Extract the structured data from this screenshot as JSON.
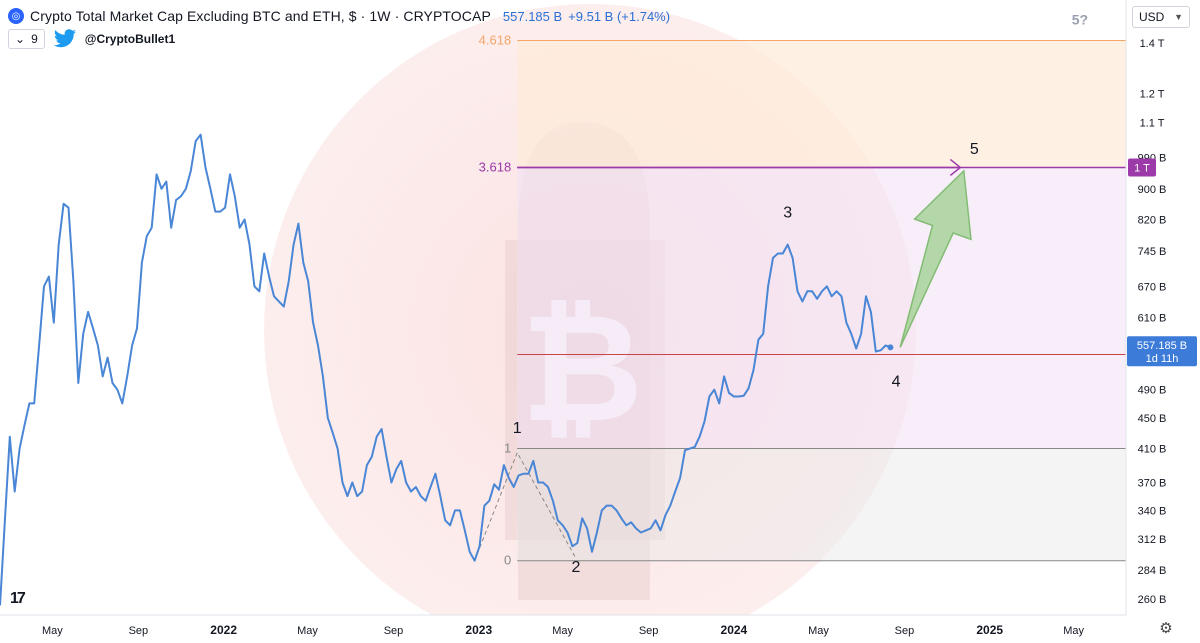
{
  "header": {
    "title": "Crypto Total Market Cap Excluding BTC and ETH, $ · 1W · CRYPTOCAP",
    "price": "557.185 B",
    "change": "+9.51 B (+1.74%)",
    "indicator_count": "9",
    "handle": "@CryptoBullet1"
  },
  "currency": {
    "selected": "USD"
  },
  "tv_logo": "17",
  "colors": {
    "line": "#4a86d6",
    "arrow_fill": "#a8d49b",
    "arrow_stroke": "#6fb45e",
    "fib_4618": "#f5a66a",
    "fib_3618": "#9b3aa8",
    "fib_1": "#888888",
    "red_line": "#c94444",
    "wave_dash": "#888888"
  },
  "chart_data": {
    "type": "line",
    "series_interval": "1W",
    "y_scale": "log",
    "ylim": [
      250,
      1500
    ],
    "xlim": [
      "2021-02-15",
      "2025-07-15"
    ],
    "y_ticks": [
      "260 B",
      "284 B",
      "312 B",
      "340 B",
      "370 B",
      "410 B",
      "450 B",
      "490 B",
      "610 B",
      "670 B",
      "745 B",
      "820 B",
      "900 B",
      "990 B",
      "1.1 T",
      "1.2 T",
      "1.4 T"
    ],
    "y_tick_values": [
      260,
      284,
      312,
      340,
      370,
      410,
      450,
      490,
      610,
      670,
      745,
      820,
      900,
      990,
      1100,
      1200,
      1400
    ],
    "x_ticks": [
      {
        "label": "May",
        "date": "2021-05-01"
      },
      {
        "label": "Sep",
        "date": "2021-09-01"
      },
      {
        "label": "2022",
        "date": "2022-01-01",
        "bold": true
      },
      {
        "label": "May",
        "date": "2022-05-01"
      },
      {
        "label": "Sep",
        "date": "2022-09-01"
      },
      {
        "label": "2023",
        "date": "2023-01-01",
        "bold": true
      },
      {
        "label": "May",
        "date": "2023-05-01"
      },
      {
        "label": "Sep",
        "date": "2023-09-01"
      },
      {
        "label": "2024",
        "date": "2024-01-01",
        "bold": true
      },
      {
        "label": "May",
        "date": "2024-05-01"
      },
      {
        "label": "Sep",
        "date": "2024-09-01"
      },
      {
        "label": "2025",
        "date": "2025-01-01",
        "bold": true
      },
      {
        "label": "May",
        "date": "2025-05-01"
      }
    ],
    "series": [
      {
        "points": [
          [
            "2021-02-15",
            255
          ],
          [
            "2021-02-22",
            330
          ],
          [
            "2021-03-01",
            425
          ],
          [
            "2021-03-08",
            360
          ],
          [
            "2021-03-15",
            410
          ],
          [
            "2021-03-22",
            440
          ],
          [
            "2021-03-29",
            470
          ],
          [
            "2021-04-05",
            470
          ],
          [
            "2021-04-12",
            560
          ],
          [
            "2021-04-19",
            670
          ],
          [
            "2021-04-26",
            690
          ],
          [
            "2021-05-03",
            600
          ],
          [
            "2021-05-10",
            760
          ],
          [
            "2021-05-17",
            860
          ],
          [
            "2021-05-24",
            850
          ],
          [
            "2021-05-31",
            680
          ],
          [
            "2021-06-07",
            500
          ],
          [
            "2021-06-14",
            580
          ],
          [
            "2021-06-21",
            620
          ],
          [
            "2021-06-28",
            590
          ],
          [
            "2021-07-05",
            560
          ],
          [
            "2021-07-12",
            510
          ],
          [
            "2021-07-19",
            540
          ],
          [
            "2021-07-26",
            500
          ],
          [
            "2021-08-02",
            490
          ],
          [
            "2021-08-09",
            470
          ],
          [
            "2021-08-16",
            510
          ],
          [
            "2021-08-23",
            560
          ],
          [
            "2021-08-30",
            590
          ],
          [
            "2021-09-06",
            720
          ],
          [
            "2021-09-13",
            780
          ],
          [
            "2021-09-20",
            800
          ],
          [
            "2021-09-27",
            940
          ],
          [
            "2021-10-04",
            900
          ],
          [
            "2021-10-11",
            920
          ],
          [
            "2021-10-18",
            800
          ],
          [
            "2021-10-25",
            870
          ],
          [
            "2021-11-01",
            880
          ],
          [
            "2021-11-08",
            900
          ],
          [
            "2021-11-15",
            950
          ],
          [
            "2021-11-22",
            1040
          ],
          [
            "2021-11-29",
            1060
          ],
          [
            "2021-12-06",
            960
          ],
          [
            "2021-12-13",
            900
          ],
          [
            "2021-12-20",
            840
          ],
          [
            "2021-12-27",
            840
          ],
          [
            "2022-01-03",
            850
          ],
          [
            "2022-01-10",
            940
          ],
          [
            "2022-01-17",
            880
          ],
          [
            "2022-01-24",
            800
          ],
          [
            "2022-01-31",
            820
          ],
          [
            "2022-02-07",
            760
          ],
          [
            "2022-02-14",
            670
          ],
          [
            "2022-02-21",
            660
          ],
          [
            "2022-02-28",
            740
          ],
          [
            "2022-03-07",
            690
          ],
          [
            "2022-03-14",
            650
          ],
          [
            "2022-03-21",
            640
          ],
          [
            "2022-03-28",
            630
          ],
          [
            "2022-04-04",
            680
          ],
          [
            "2022-04-11",
            760
          ],
          [
            "2022-04-18",
            810
          ],
          [
            "2022-04-25",
            720
          ],
          [
            "2022-05-02",
            680
          ],
          [
            "2022-05-09",
            600
          ],
          [
            "2022-05-16",
            560
          ],
          [
            "2022-05-23",
            510
          ],
          [
            "2022-05-30",
            450
          ],
          [
            "2022-06-06",
            430
          ],
          [
            "2022-06-13",
            410
          ],
          [
            "2022-06-20",
            370
          ],
          [
            "2022-06-27",
            355
          ],
          [
            "2022-07-04",
            370
          ],
          [
            "2022-07-11",
            355
          ],
          [
            "2022-07-18",
            360
          ],
          [
            "2022-07-25",
            390
          ],
          [
            "2022-08-01",
            400
          ],
          [
            "2022-08-08",
            425
          ],
          [
            "2022-08-15",
            435
          ],
          [
            "2022-08-22",
            400
          ],
          [
            "2022-08-29",
            370
          ],
          [
            "2022-09-05",
            385
          ],
          [
            "2022-09-12",
            395
          ],
          [
            "2022-09-19",
            370
          ],
          [
            "2022-09-26",
            360
          ],
          [
            "2022-10-03",
            365
          ],
          [
            "2022-10-10",
            355
          ],
          [
            "2022-10-17",
            350
          ],
          [
            "2022-10-24",
            365
          ],
          [
            "2022-10-31",
            380
          ],
          [
            "2022-11-07",
            355
          ],
          [
            "2022-11-14",
            330
          ],
          [
            "2022-11-21",
            325
          ],
          [
            "2022-11-28",
            340
          ],
          [
            "2022-12-05",
            340
          ],
          [
            "2022-12-12",
            320
          ],
          [
            "2022-12-19",
            300
          ],
          [
            "2022-12-26",
            292
          ],
          [
            "2023-01-02",
            305
          ],
          [
            "2023-01-09",
            345
          ],
          [
            "2023-01-16",
            350
          ],
          [
            "2023-01-23",
            368
          ],
          [
            "2023-01-30",
            362
          ],
          [
            "2023-02-06",
            390
          ],
          [
            "2023-02-13",
            375
          ],
          [
            "2023-02-20",
            365
          ],
          [
            "2023-02-27",
            378
          ],
          [
            "2023-03-06",
            380
          ],
          [
            "2023-03-13",
            380
          ],
          [
            "2023-03-20",
            395
          ],
          [
            "2023-03-27",
            370
          ],
          [
            "2023-04-03",
            370
          ],
          [
            "2023-04-10",
            365
          ],
          [
            "2023-04-17",
            350
          ],
          [
            "2023-04-24",
            330
          ],
          [
            "2023-05-01",
            325
          ],
          [
            "2023-05-08",
            318
          ],
          [
            "2023-05-15",
            305
          ],
          [
            "2023-05-22",
            308
          ],
          [
            "2023-05-29",
            332
          ],
          [
            "2023-06-05",
            322
          ],
          [
            "2023-06-12",
            300
          ],
          [
            "2023-06-19",
            318
          ],
          [
            "2023-06-26",
            340
          ],
          [
            "2023-07-03",
            345
          ],
          [
            "2023-07-10",
            345
          ],
          [
            "2023-07-17",
            340
          ],
          [
            "2023-07-24",
            332
          ],
          [
            "2023-07-31",
            325
          ],
          [
            "2023-08-07",
            328
          ],
          [
            "2023-08-14",
            322
          ],
          [
            "2023-08-21",
            318
          ],
          [
            "2023-08-28",
            320
          ],
          [
            "2023-09-04",
            322
          ],
          [
            "2023-09-11",
            330
          ],
          [
            "2023-09-18",
            320
          ],
          [
            "2023-09-25",
            335
          ],
          [
            "2023-10-02",
            345
          ],
          [
            "2023-10-09",
            360
          ],
          [
            "2023-10-16",
            375
          ],
          [
            "2023-10-23",
            408
          ],
          [
            "2023-10-30",
            410
          ],
          [
            "2023-11-06",
            412
          ],
          [
            "2023-11-13",
            425
          ],
          [
            "2023-11-20",
            445
          ],
          [
            "2023-11-27",
            480
          ],
          [
            "2023-12-04",
            490
          ],
          [
            "2023-12-11",
            470
          ],
          [
            "2023-12-18",
            510
          ],
          [
            "2023-12-25",
            485
          ],
          [
            "2024-01-01",
            480
          ],
          [
            "2024-01-08",
            480
          ],
          [
            "2024-01-15",
            481
          ],
          [
            "2024-01-22",
            492
          ],
          [
            "2024-01-29",
            520
          ],
          [
            "2024-02-05",
            570
          ],
          [
            "2024-02-12",
            580
          ],
          [
            "2024-02-19",
            670
          ],
          [
            "2024-02-26",
            730
          ],
          [
            "2024-03-04",
            740
          ],
          [
            "2024-03-11",
            740
          ],
          [
            "2024-03-18",
            760
          ],
          [
            "2024-03-25",
            730
          ],
          [
            "2024-04-01",
            660
          ],
          [
            "2024-04-08",
            640
          ],
          [
            "2024-04-15",
            660
          ],
          [
            "2024-04-22",
            660
          ],
          [
            "2024-04-29",
            645
          ],
          [
            "2024-05-06",
            660
          ],
          [
            "2024-05-13",
            670
          ],
          [
            "2024-05-20",
            650
          ],
          [
            "2024-05-27",
            660
          ],
          [
            "2024-06-03",
            650
          ],
          [
            "2024-06-10",
            600
          ],
          [
            "2024-06-17",
            580
          ],
          [
            "2024-06-24",
            555
          ],
          [
            "2024-07-01",
            580
          ],
          [
            "2024-07-08",
            650
          ],
          [
            "2024-07-15",
            620
          ],
          [
            "2024-07-22",
            550
          ],
          [
            "2024-07-29",
            552
          ],
          [
            "2024-08-05",
            560
          ],
          [
            "2024-08-12",
            557
          ]
        ]
      }
    ],
    "fib_levels": [
      {
        "label": "4.618",
        "value": 1410,
        "start": "2023-02-25"
      },
      {
        "label": "3.618",
        "value": 960,
        "start": "2023-02-25"
      },
      {
        "label": "1",
        "value": 410,
        "start": "2023-02-25"
      },
      {
        "label": "0",
        "value": 292,
        "start": "2023-02-25"
      }
    ],
    "red_line": {
      "value": 545,
      "start": "2023-02-25"
    },
    "wave_labels": [
      {
        "label": "1",
        "date": "2023-02-25",
        "value": 430
      },
      {
        "label": "2",
        "date": "2023-05-20",
        "value": 282
      },
      {
        "label": "3",
        "date": "2024-03-18",
        "value": 825
      },
      {
        "label": "4",
        "date": "2024-08-20",
        "value": 495
      },
      {
        "label": "5",
        "date": "2024-12-10",
        "value": 1000
      },
      {
        "label": "5?",
        "date": "2025-05-10",
        "value": 1480
      }
    ],
    "wave_dashes": [
      [
        [
          "2022-12-26",
          292
        ],
        [
          "2023-02-25",
          405
        ],
        [
          "2023-05-20",
          294
        ]
      ]
    ],
    "projection_arrow": {
      "from": [
        "2024-08-26",
        557
      ],
      "to": [
        "2024-11-25",
        950
      ]
    },
    "target_arrow": {
      "from_date": "2023-02-25",
      "to_date": "2024-11-20",
      "value": 960
    },
    "price_tags": [
      {
        "value": 960,
        "text": "1 T",
        "type": "fib"
      },
      {
        "value": 557.185,
        "text": "557.185 B",
        "sub": "1d 11h",
        "type": "price"
      }
    ]
  }
}
